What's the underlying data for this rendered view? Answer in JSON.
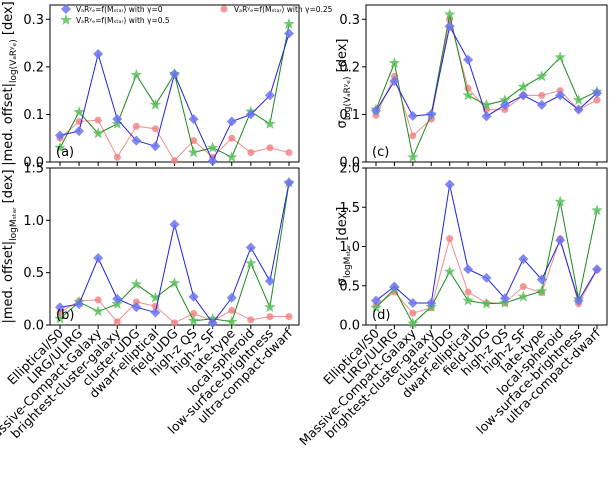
{
  "colors": {
    "blue": "#2222dd",
    "green": "#1a8a1a",
    "red": "#f07070",
    "blue_marker": "#6c74f0",
    "green_marker": "#5cbf5c",
    "red_marker": "#f08080"
  },
  "categories": [
    "Elliptical/S0",
    "LIRG/ULIRG",
    "Massive-Compact-Galaxy",
    "brightest-cluster-galaxy",
    "cluster-UDG",
    "dwarf-elliptical",
    "field-UDG",
    "high-z QS",
    "high-z SF",
    "late-type",
    "local-spheroid",
    "low-surface-brightness",
    "ultra-compact-dwarf"
  ],
  "chart_data": [
    {
      "type": "line",
      "panel_label": "(a)",
      "ylabel": "|med. offset|log(VₐRʸₑ) [dex]",
      "ylabel_main": "|med. offset|",
      "ylabel_sub": "log(VₐRʸₑ)",
      "ylabel_unit": " [dex]",
      "ylim": [
        0,
        0.33
      ],
      "yticks": [
        "0.0",
        "0.1",
        "0.2",
        "0.3"
      ],
      "yticks_values": [
        0,
        0.1,
        0.2,
        0.3
      ],
      "legend": {
        "position": "top",
        "entries": [
          "VaRye=f(Mstar) with γ=0",
          "VaRye=f(Mstar) with γ=0.5",
          "VaRye=f(Mstar) with γ=0.25"
        ]
      },
      "legend_labels": [
        "VₐRʸₑ=f(Mₛₜₐᵣ) with γ=0",
        "VₐRʸₑ=f(Mₛₜₐᵣ) with γ=0.5",
        "VₐRʸₑ=f(Mₛₜₐᵣ) with γ=0.25"
      ],
      "series": [
        {
          "name": "γ=0",
          "color": "blue",
          "marker": "diamond",
          "values": [
            0.056,
            0.065,
            0.227,
            0.09,
            0.045,
            0.033,
            0.185,
            0.09,
            0.002,
            0.085,
            0.1,
            0.14,
            0.27
          ]
        },
        {
          "name": "γ=0.5",
          "color": "green",
          "marker": "star",
          "values": [
            0.03,
            0.105,
            0.06,
            0.08,
            0.183,
            0.12,
            0.185,
            0.02,
            0.03,
            0.01,
            0.106,
            0.08,
            0.29
          ]
        },
        {
          "name": "γ=0.25",
          "color": "red",
          "marker": "circle",
          "values": [
            0.05,
            0.085,
            0.088,
            0.01,
            0.075,
            0.07,
            0.003,
            0.045,
            0.01,
            0.05,
            0.02,
            0.03,
            0.02
          ]
        }
      ]
    },
    {
      "type": "line",
      "panel_label": "(c)",
      "ylabel": "σ log(VₐRʸₑ) [dex]",
      "ylabel_main": "σ",
      "ylabel_sub": "log(VₐRʸₑ)",
      "ylabel_unit": " [dex]",
      "ylim": [
        0,
        0.33
      ],
      "yticks": [
        "0.0",
        "0.1",
        "0.2",
        "0.3"
      ],
      "yticks_values": [
        0,
        0.1,
        0.2,
        0.3
      ],
      "series": [
        {
          "name": "γ=0",
          "color": "blue",
          "marker": "diamond",
          "values": [
            0.108,
            0.17,
            0.097,
            0.1,
            0.285,
            0.215,
            0.096,
            0.12,
            0.14,
            0.12,
            0.14,
            0.11,
            0.145
          ]
        },
        {
          "name": "γ=0.5",
          "color": "green",
          "marker": "star",
          "values": [
            0.11,
            0.208,
            0.01,
            0.1,
            0.31,
            0.14,
            0.12,
            0.13,
            0.158,
            0.18,
            0.22,
            0.13,
            0.148
          ]
        },
        {
          "name": "γ=0.25",
          "color": "red",
          "marker": "circle",
          "values": [
            0.098,
            0.18,
            0.055,
            0.09,
            0.3,
            0.155,
            0.11,
            0.11,
            0.14,
            0.14,
            0.15,
            0.11,
            0.13
          ]
        }
      ]
    },
    {
      "type": "line",
      "panel_label": "(b)",
      "ylabel": "|med. offset|logMstar [dex]",
      "ylabel_main": "|med. offset|",
      "ylabel_sub": "logMₛₜₐᵣ",
      "ylabel_unit": " [dex]",
      "ylim": [
        0,
        1.5
      ],
      "yticks": [
        "0.0",
        "0.5",
        "1.0",
        "1.5"
      ],
      "yticks_values": [
        0,
        0.5,
        1.0,
        1.5
      ],
      "series": [
        {
          "name": "γ=0",
          "color": "blue",
          "marker": "diamond",
          "values": [
            0.17,
            0.2,
            0.64,
            0.25,
            0.17,
            0.12,
            0.96,
            0.27,
            0.02,
            0.26,
            0.74,
            0.42,
            1.36
          ]
        },
        {
          "name": "γ=0.5",
          "color": "green",
          "marker": "star",
          "values": [
            0.06,
            0.22,
            0.13,
            0.2,
            0.39,
            0.26,
            0.4,
            0.04,
            0.06,
            0.03,
            0.59,
            0.17,
            1.36
          ]
        },
        {
          "name": "γ=0.25",
          "color": "red",
          "marker": "circle",
          "values": [
            0.12,
            0.23,
            0.24,
            0.03,
            0.22,
            0.18,
            0.02,
            0.11,
            0.04,
            0.14,
            0.05,
            0.08,
            0.08
          ]
        }
      ]
    },
    {
      "type": "line",
      "panel_label": "(d)",
      "ylabel": "σ logMstar [dex]",
      "ylabel_main": "σ",
      "ylabel_sub": "logMₛₜₐᵣ",
      "ylabel_unit": " [dex]",
      "ylim": [
        0,
        2.0
      ],
      "yticks": [
        "0.0",
        "0.5",
        "1.0",
        "1.5",
        "2.0"
      ],
      "yticks_values": [
        0,
        0.5,
        1.0,
        1.5,
        2.0
      ],
      "series": [
        {
          "name": "γ=0",
          "color": "blue",
          "marker": "diamond",
          "values": [
            0.31,
            0.49,
            0.28,
            0.28,
            1.79,
            0.71,
            0.6,
            0.34,
            0.84,
            0.58,
            1.08,
            0.31,
            0.71
          ]
        },
        {
          "name": "γ=0.5",
          "color": "green",
          "marker": "star",
          "values": [
            0.22,
            0.46,
            0.02,
            0.23,
            0.68,
            0.31,
            0.27,
            0.28,
            0.36,
            0.43,
            1.57,
            0.33,
            1.46
          ]
        },
        {
          "name": "γ=0.25",
          "color": "red",
          "marker": "circle",
          "values": [
            0.25,
            0.42,
            0.15,
            0.22,
            1.1,
            0.42,
            0.28,
            0.28,
            0.49,
            0.41,
            1.1,
            0.27,
            0.7
          ]
        }
      ]
    }
  ]
}
